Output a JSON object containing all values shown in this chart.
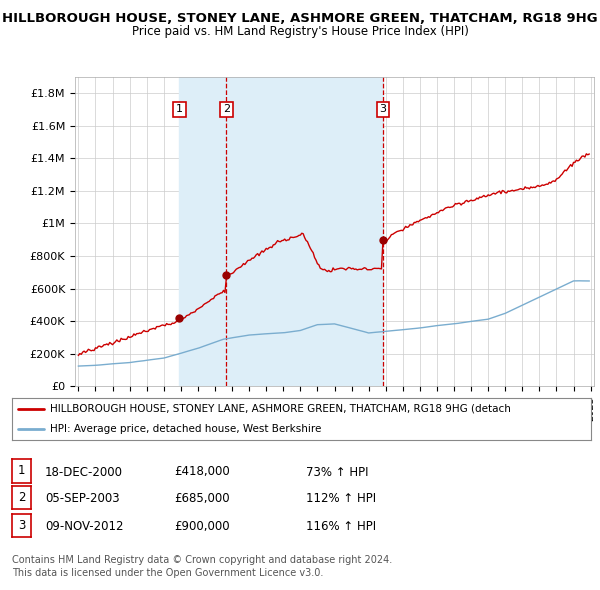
{
  "title": "HILLBOROUGH HOUSE, STONEY LANE, ASHMORE GREEN, THATCHAM, RG18 9HG",
  "subtitle": "Price paid vs. HM Land Registry's House Price Index (HPI)",
  "ylim": [
    0,
    1900000
  ],
  "yticks": [
    0,
    200000,
    400000,
    600000,
    800000,
    1000000,
    1200000,
    1400000,
    1600000,
    1800000
  ],
  "ytick_labels": [
    "£0",
    "£200K",
    "£400K",
    "£600K",
    "£800K",
    "£1M",
    "£1.2M",
    "£1.4M",
    "£1.6M",
    "£1.8M"
  ],
  "sale_prices": [
    418000,
    685000,
    900000
  ],
  "sale_labels": [
    "1",
    "2",
    "3"
  ],
  "legend_line1": "HILLBOROUGH HOUSE, STONEY LANE, ASHMORE GREEN, THATCHAM, RG18 9HG (detach",
  "legend_line2": "HPI: Average price, detached house, West Berkshire",
  "table_rows": [
    {
      "num": "1",
      "date": "18-DEC-2000",
      "price": "£418,000",
      "pct": "73% ↑ HPI"
    },
    {
      "num": "2",
      "date": "05-SEP-2003",
      "price": "£685,000",
      "pct": "112% ↑ HPI"
    },
    {
      "num": "3",
      "date": "09-NOV-2012",
      "price": "£900,000",
      "pct": "116% ↑ HPI"
    }
  ],
  "footnote1": "Contains HM Land Registry data © Crown copyright and database right 2024.",
  "footnote2": "This data is licensed under the Open Government Licence v3.0.",
  "line_color_red": "#cc0000",
  "line_color_blue": "#7aadcf",
  "bg_color": "#ffffff",
  "grid_color": "#cccccc",
  "vline_color_fill": "#ddeef8",
  "vline_dashed_color": "#cc0000",
  "year_start": 1995,
  "year_end": 2025
}
